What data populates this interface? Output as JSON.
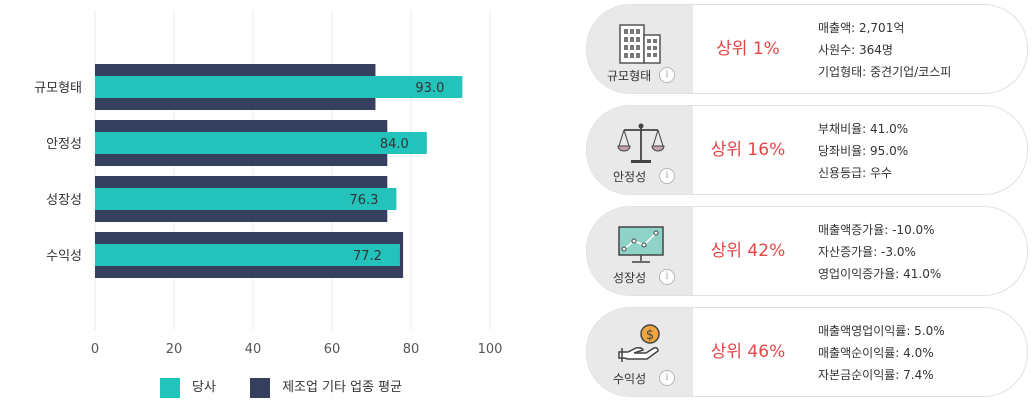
{
  "chart_data": {
    "type": "bar",
    "orientation": "horizontal",
    "categories": [
      "규모형태",
      "안정성",
      "성장성",
      "수익성"
    ],
    "series": [
      {
        "name": "당사",
        "values": [
          93.0,
          84.0,
          76.3,
          77.2
        ],
        "color": "#23c3bb"
      },
      {
        "name": "제조업 기타 업종 평균",
        "values": [
          71,
          74,
          74,
          78
        ],
        "color": "#373f5e"
      }
    ],
    "xlim": [
      0,
      100
    ],
    "xticks": [
      0,
      20,
      40,
      60,
      80,
      100
    ],
    "grid": true,
    "legend": "bottom",
    "data_labels": [
      "93.0",
      "84.0",
      "76.3",
      "77.2"
    ]
  },
  "legend": {
    "company": "당사",
    "industry": "제조업 기타 업종 평균",
    "company_color": "#23c3bb",
    "industry_color": "#373f5e"
  },
  "cards": [
    {
      "category": "규모형태",
      "icon": "buildings-icon",
      "rank": "상위 1%",
      "details": [
        "매출액: 2,701억",
        "사원수: 364명",
        "기업형태: 중견기업/코스피"
      ]
    },
    {
      "category": "안정성",
      "icon": "scale-icon",
      "rank": "상위 16%",
      "details": [
        "부채비율: 41.0%",
        "당좌비율: 95.0%",
        "신용등급: 우수"
      ]
    },
    {
      "category": "성장성",
      "icon": "growth-monitor-icon",
      "rank": "상위 42%",
      "details": [
        "매출액증가율: -10.0%",
        "자산증가율: -3.0%",
        "영업이익증가율: 41.0%"
      ]
    },
    {
      "category": "수익성",
      "icon": "coin-hand-icon",
      "rank": "상위 46%",
      "details": [
        "매출액영업이익률: 5.0%",
        "매출액순이익률: 4.0%",
        "자본금순이익률: 7.4%"
      ]
    }
  ],
  "info_glyph": "i",
  "rank_color": "#e24646"
}
